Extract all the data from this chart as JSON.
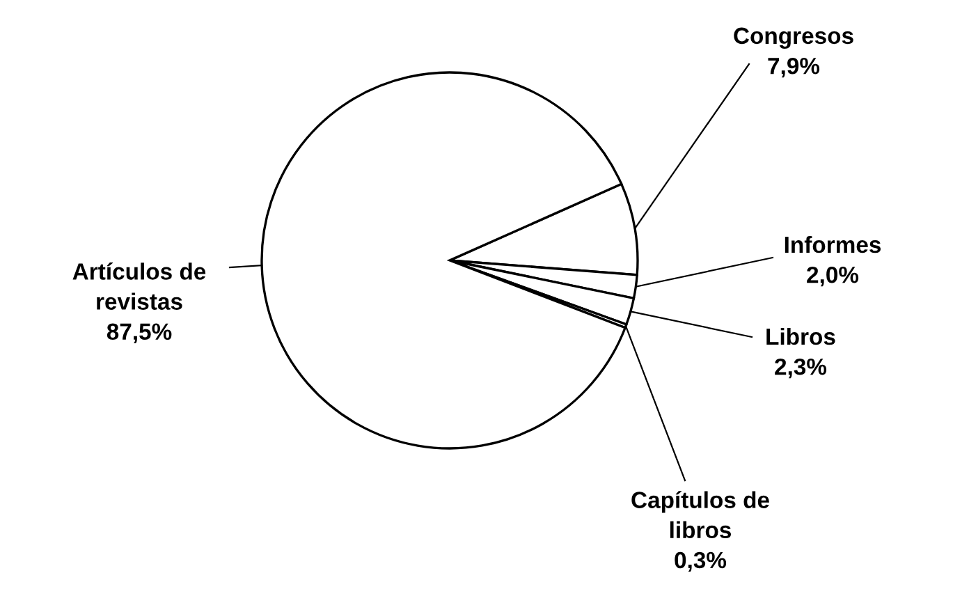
{
  "chart_data": {
    "type": "pie",
    "categories": [
      "Congresos",
      "Informes",
      "Libros",
      "Capítulos de\nlibros",
      "Artículos de\nrevistas"
    ],
    "values": [
      7.9,
      2.0,
      2.3,
      0.3,
      87.5
    ],
    "value_labels": [
      "7,9%",
      "2,0%",
      "2,3%",
      "0,3%",
      "87,5%"
    ],
    "colors": [
      "#ffffff",
      "#ffffff",
      "#ffffff",
      "#ffffff",
      "#ffffff"
    ]
  }
}
